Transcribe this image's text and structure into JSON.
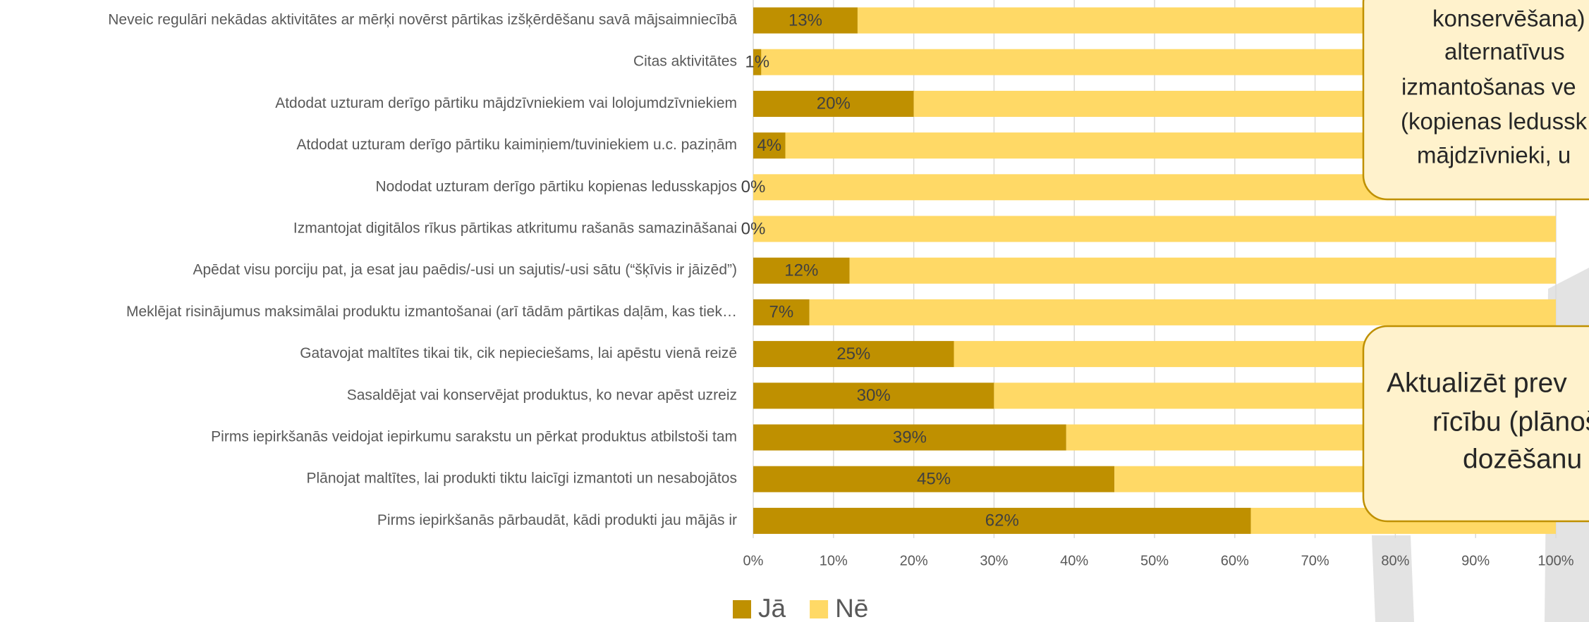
{
  "chart_data": {
    "type": "stacked_barh",
    "categories": [
      "Neveic regulāri nekādas aktivitātes ar mērķi novērst pārtikas izšķērdēšanu savā mājsaimniecībā",
      "Citas aktivitātes",
      "Atdodat uzturam derīgo pārtiku mājdzīvniekiem vai lolojumdzīvniekiem",
      "Atdodat uzturam derīgo pārtiku kaimiņiem/tuviniekiem u.c. paziņām",
      "Nododat uzturam derīgo pārtiku kopienas ledusskapjos",
      "Izmantojat digitālos rīkus pārtikas atkritumu rašanās samazināšanai",
      "Apēdat visu porciju pat, ja esat jau paēdis/-usi un sajutis/-usi sātu (“šķīvis ir jāizēd”)",
      "Meklējat risinājumus maksimālai produktu izmantošanai (arī tādām pārtikas daļām, kas tiek…",
      "Gatavojat maltītes tikai tik, cik nepieciešams, lai apēstu vienā reizē",
      "Sasaldējat vai konservējat produktus, ko nevar apēst uzreiz",
      "Pirms iepirkšanās veidojat iepirkumu sarakstu un pērkat produktus atbilstoši tam",
      "Plānojat maltītes, lai produkti tiktu laicīgi izmantoti un nesabojātos",
      "Pirms iepirkšanās pārbaudāt, kādi produkti jau mājās ir"
    ],
    "series": [
      {
        "name": "Jā",
        "color": "#bf9000",
        "values": [
          13,
          1,
          20,
          4,
          0,
          0,
          12,
          7,
          25,
          30,
          39,
          45,
          62
        ],
        "value_labels": [
          "13%",
          "1%",
          "20%",
          "4%",
          "0%",
          "0%",
          "12%",
          "7%",
          "25%",
          "30%",
          "39%",
          "45%",
          "62%"
        ]
      },
      {
        "name": "Nē",
        "color": "#ffd966",
        "values": [
          87,
          99,
          80,
          96,
          100,
          100,
          88,
          93,
          75,
          70,
          61,
          55,
          38
        ]
      }
    ],
    "xlim": [
      0,
      100
    ],
    "xticks": [
      {
        "value": 0,
        "label": "0%"
      },
      {
        "value": 10,
        "label": "10%"
      },
      {
        "value": 20,
        "label": "20%"
      },
      {
        "value": 30,
        "label": "30%"
      },
      {
        "value": 40,
        "label": "40%"
      },
      {
        "value": 50,
        "label": "50%"
      },
      {
        "value": 60,
        "label": "60%"
      },
      {
        "value": 70,
        "label": "70%"
      },
      {
        "value": 80,
        "label": "80%"
      },
      {
        "value": 90,
        "label": "90%"
      },
      {
        "value": 100,
        "label": "100%"
      }
    ],
    "grid": true,
    "legend": "bottom",
    "callouts": [
      {
        "lines": [
          "konservēšana)",
          "alternatīvus",
          "izmantošanas ve",
          "(kopienas ledussk",
          "mājdzīvnieki, u"
        ]
      },
      {
        "lines": [
          "Aktualizēt prev",
          "rīcību (plānoš",
          "dozēšanu"
        ]
      }
    ]
  }
}
